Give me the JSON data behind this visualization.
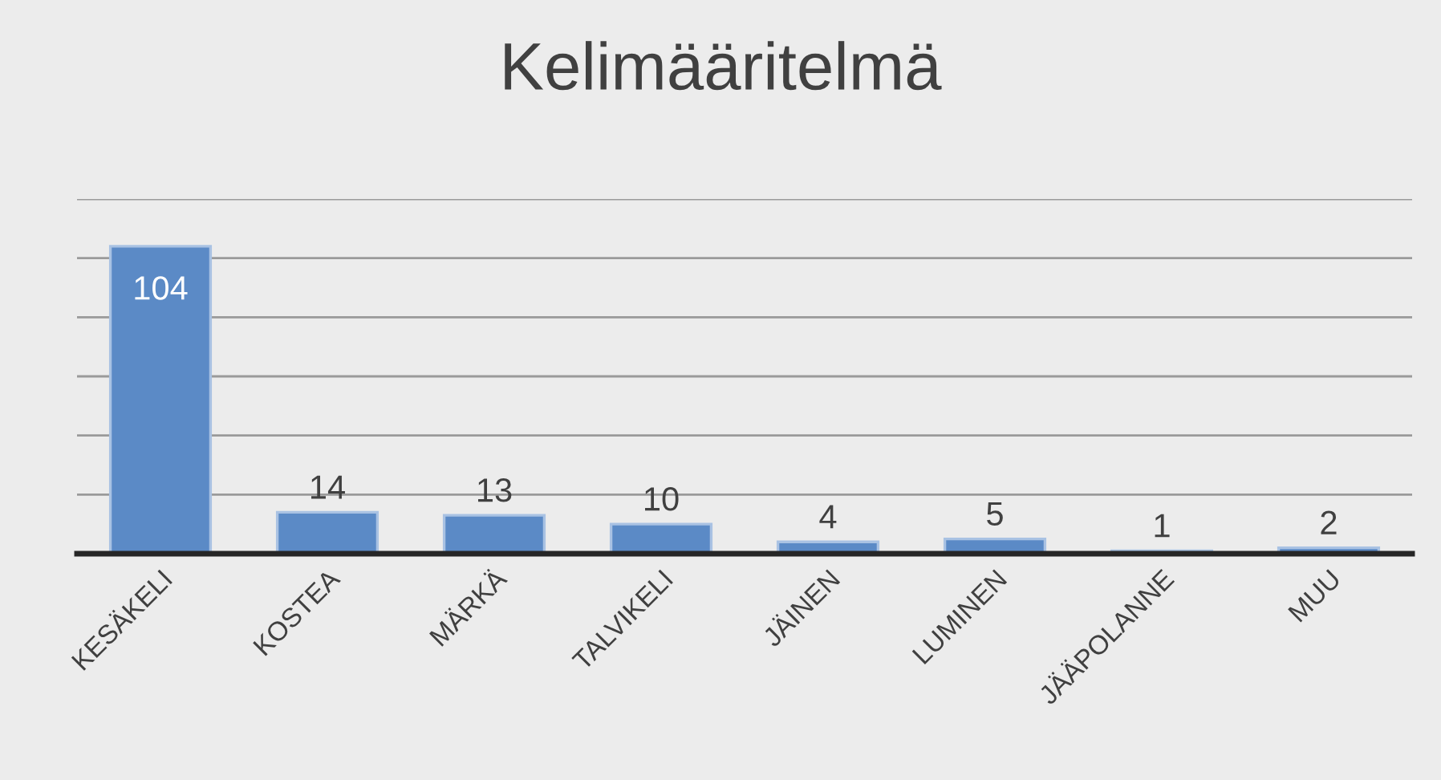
{
  "chart_data": {
    "type": "bar",
    "title": "Kelimääritelmä",
    "categories": [
      "KESÄKELI",
      "KOSTEA",
      "MÄRKÄ",
      "TALVIKELI",
      "JÄINEN",
      "LUMINEN",
      "JÄÄPOLANNE",
      "MUU"
    ],
    "values": [
      104,
      14,
      13,
      10,
      4,
      5,
      1,
      2
    ],
    "color": "#5b8ac6",
    "data_labels": true,
    "ylim": [
      0,
      120
    ],
    "yticks": [
      {
        "value": 0,
        "label": null
      },
      {
        "value": 20,
        "label": null
      },
      {
        "value": 40,
        "label": null
      },
      {
        "value": 60,
        "label": null
      },
      {
        "value": 80,
        "label": null
      },
      {
        "value": 100,
        "label": null
      },
      {
        "value": 120,
        "label": null
      }
    ],
    "grid": "y"
  }
}
